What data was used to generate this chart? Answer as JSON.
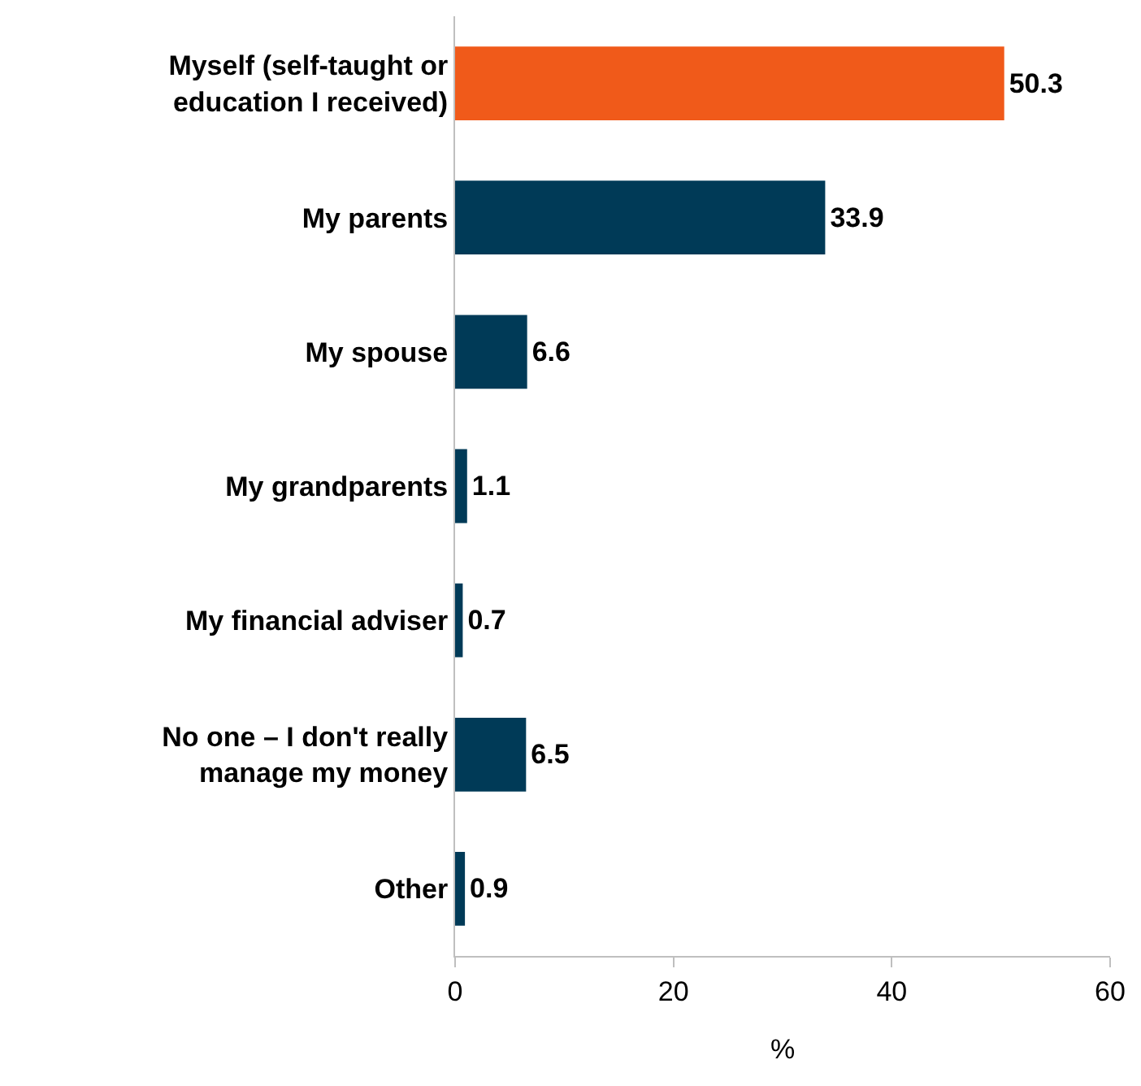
{
  "chart_data": {
    "type": "bar",
    "orientation": "horizontal",
    "xlabel": "%",
    "categories": [
      "Myself (self-taught or\neducation I received)",
      "My parents",
      "My spouse",
      "My grandparents",
      "My financial adviser",
      "No one – I don't really\nmanage my money",
      "Other"
    ],
    "values": [
      50.3,
      33.9,
      6.6,
      1.1,
      0.7,
      6.5,
      0.9
    ],
    "colors": [
      "#f05a1a",
      "#003a57",
      "#003a57",
      "#003a57",
      "#003a57",
      "#003a57",
      "#003a57"
    ],
    "xlim": [
      0,
      60
    ],
    "xticks": [
      0,
      20,
      40,
      60
    ],
    "data_labels": true,
    "grid": false
  }
}
